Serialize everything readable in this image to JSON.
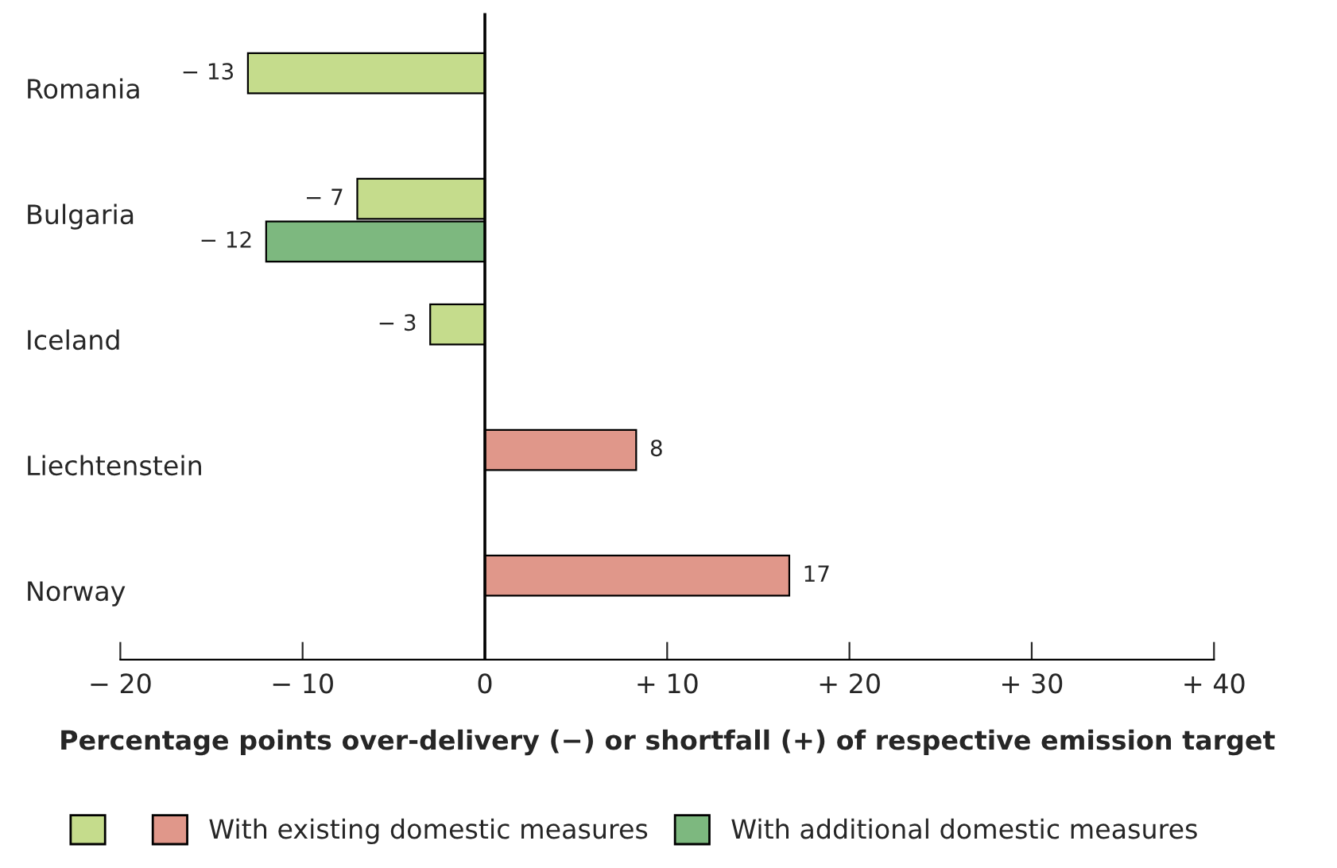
{
  "chart_data": {
    "type": "bar",
    "orientation": "horizontal",
    "categories": [
      "Romania",
      "Bulgaria",
      "Iceland",
      "Liechtenstein",
      "Norway"
    ],
    "xlabel": "Percentage points over-delivery (−) or shortfall (+) of respective emission target",
    "xlim": [
      -20,
      40
    ],
    "xticks": [
      {
        "value": -20,
        "label": "− 20"
      },
      {
        "value": -10,
        "label": "− 10"
      },
      0,
      {
        "value": 10,
        "label": "+ 10"
      },
      {
        "value": 20,
        "label": "+ 20"
      },
      {
        "value": 30,
        "label": "+ 30"
      },
      {
        "value": 40,
        "label": "+ 40"
      }
    ],
    "series": [
      {
        "name": "With existing domestic measures",
        "colors": [
          "#c5dc8c",
          "#c5dc8c",
          "#c5dc8c",
          "#e0978a",
          "#e0978a"
        ],
        "values": [
          -13,
          -7,
          -3,
          8.3,
          16.7
        ],
        "value_labels": [
          "− 13",
          "− 7",
          "− 3",
          "8",
          "17"
        ]
      },
      {
        "name": "With additional domestic measures",
        "color": "#7db87f",
        "values": [
          null,
          -12,
          null,
          null,
          null
        ],
        "value_labels": [
          null,
          "− 12",
          null,
          null,
          null
        ]
      }
    ],
    "ref_lines": [
      {
        "axis": "x",
        "value": 0,
        "color": "#000000"
      }
    ],
    "grid": false,
    "legend": "bottom"
  }
}
